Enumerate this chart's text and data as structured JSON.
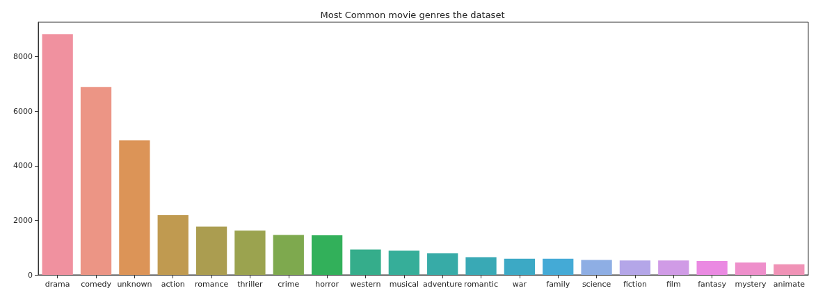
{
  "chart_data": {
    "type": "bar",
    "title": "Most Common movie genres the dataset",
    "categories": [
      "drama",
      "comedy",
      "unknown",
      "action",
      "romance",
      "thriller",
      "crime",
      "horror",
      "western",
      "musical",
      "adventure",
      "romantic",
      "war",
      "family",
      "science",
      "fiction",
      "film",
      "fantasy",
      "mystery",
      "animate"
    ],
    "values": [
      8820,
      6890,
      4930,
      2190,
      1770,
      1620,
      1460,
      1450,
      930,
      890,
      790,
      650,
      590,
      590,
      550,
      530,
      530,
      510,
      450,
      390
    ],
    "colors": [
      "#f0919f",
      "#ec9585",
      "#dc9457",
      "#c09a50",
      "#ab9d50",
      "#9ba34f",
      "#7ea94e",
      "#32b05a",
      "#35ad8b",
      "#36ae99",
      "#37aba7",
      "#39a9b5",
      "#3ca9c5",
      "#44aad6",
      "#8eaee4",
      "#b4a6e8",
      "#d09be6",
      "#ea8ae2",
      "#ee8fcb",
      "#f092b6"
    ],
    "ylim": [
      0,
      9260
    ],
    "yticks": [
      0,
      2000,
      4000,
      6000,
      8000
    ],
    "grid": false
  }
}
